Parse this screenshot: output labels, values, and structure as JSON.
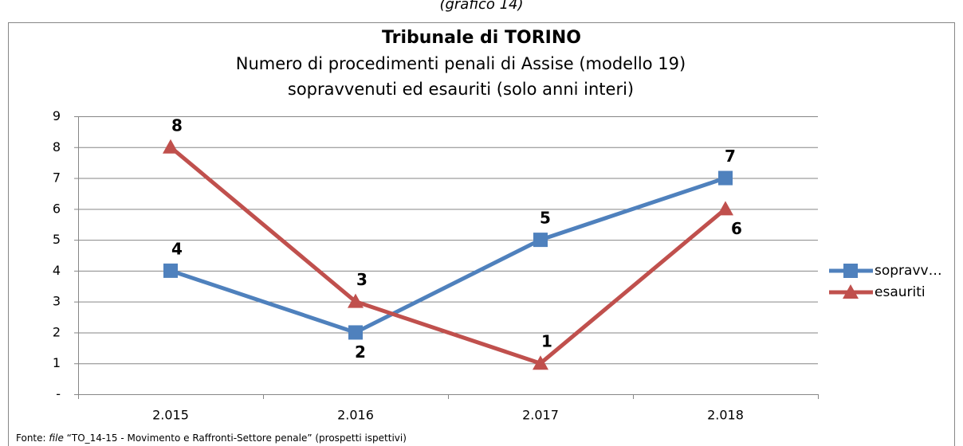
{
  "caption": "(grafico 14)",
  "chart_data": {
    "type": "line",
    "title": "Tribunale di TORINO",
    "subtitle": [
      "Numero di procedimenti penali di Assise (modello 19)",
      "sopravvenuti ed esauriti (solo anni interi)"
    ],
    "categories": [
      "2.015",
      "2.016",
      "2.017",
      "2.018"
    ],
    "series": [
      {
        "name": "sopravv…",
        "color": "#4f81bd",
        "label_color": "#0070c0",
        "marker": "square",
        "values": [
          4,
          2,
          5,
          7
        ]
      },
      {
        "name": "esauriti",
        "color": "#c0504d",
        "label_color": "#c00000",
        "marker": "triangle",
        "values": [
          8,
          3,
          1,
          6
        ]
      }
    ],
    "ylim": [
      0,
      9
    ],
    "yticks": [
      {
        "value": 0,
        "label": "-"
      },
      1,
      2,
      3,
      4,
      5,
      6,
      7,
      8,
      9
    ],
    "grid": true,
    "legend": "right"
  },
  "source": [
    "Fonte: ",
    "file",
    " “TO_14-15 - Movimento e Raffronti-Settore penale” (prospetti ispettivi)"
  ]
}
